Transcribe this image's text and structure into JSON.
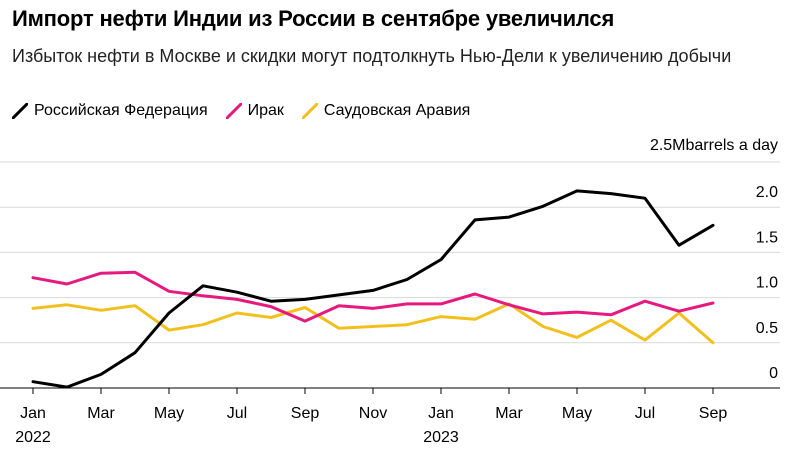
{
  "header": {
    "title": "Импорт нефти Индии из России в сентябре увеличился",
    "subtitle": "Избыток нефти в Москве и скидки могут подтолкнуть Нью-Дели к увеличению добычи"
  },
  "chart_data": {
    "type": "line",
    "title": "Импорт нефти Индии из России в сентябре увеличился",
    "subtitle": "Избыток нефти в Москве и скидки могут подтолкнуть Нью-Дели к увеличению добычи",
    "unit_label": "2.5Mbarrels a day",
    "xlabel": "",
    "ylabel": "Mbarrels a day",
    "ylim": [
      0,
      2.5
    ],
    "y_ticks": [
      {
        "value": 0,
        "label": "0"
      },
      {
        "value": 0.5,
        "label": "0.5"
      },
      {
        "value": 1.0,
        "label": "1.0"
      },
      {
        "value": 1.5,
        "label": "1.5"
      },
      {
        "value": 2.0,
        "label": "2.0"
      }
    ],
    "grid": true,
    "legend_position": "top-left",
    "x_ticks": [
      {
        "index": 0,
        "month": "Jan",
        "year": "2022"
      },
      {
        "index": 2,
        "month": "Mar",
        "year": ""
      },
      {
        "index": 4,
        "month": "May",
        "year": ""
      },
      {
        "index": 6,
        "month": "Jul",
        "year": ""
      },
      {
        "index": 8,
        "month": "Sep",
        "year": ""
      },
      {
        "index": 10,
        "month": "Nov",
        "year": ""
      },
      {
        "index": 12,
        "month": "Jan",
        "year": "2023"
      },
      {
        "index": 14,
        "month": "Mar",
        "year": ""
      },
      {
        "index": 16,
        "month": "May",
        "year": ""
      },
      {
        "index": 18,
        "month": "Jul",
        "year": ""
      },
      {
        "index": 20,
        "month": "Sep",
        "year": ""
      }
    ],
    "categories": [
      "Jan 2022",
      "Feb 2022",
      "Mar 2022",
      "Apr 2022",
      "May 2022",
      "Jun 2022",
      "Jul 2022",
      "Aug 2022",
      "Sep 2022",
      "Oct 2022",
      "Nov 2022",
      "Dec 2022",
      "Jan 2023",
      "Feb 2023",
      "Mar 2023",
      "Apr 2023",
      "May 2023",
      "Jun 2023",
      "Jul 2023",
      "Aug 2023",
      "Sep 2023"
    ],
    "series": [
      {
        "name": "Российская Федерация",
        "color": "#000000",
        "values": [
          0.07,
          0.01,
          0.15,
          0.39,
          0.83,
          1.13,
          1.06,
          0.96,
          0.98,
          1.03,
          1.08,
          1.2,
          1.42,
          1.86,
          1.89,
          2.01,
          2.18,
          2.15,
          2.1,
          1.58,
          1.8
        ]
      },
      {
        "name": "Ирак",
        "color": "#e6197f",
        "values": [
          1.22,
          1.15,
          1.27,
          1.28,
          1.07,
          1.02,
          0.98,
          0.9,
          0.74,
          0.91,
          0.88,
          0.93,
          0.93,
          1.04,
          0.92,
          0.82,
          0.84,
          0.81,
          0.96,
          0.85,
          0.94
        ]
      },
      {
        "name": "Саудовская Аравия",
        "color": "#f2c01e",
        "values": [
          0.88,
          0.92,
          0.86,
          0.91,
          0.64,
          0.7,
          0.83,
          0.78,
          0.89,
          0.66,
          0.68,
          0.7,
          0.79,
          0.76,
          0.93,
          0.68,
          0.56,
          0.75,
          0.53,
          0.83,
          0.5
        ]
      }
    ]
  }
}
